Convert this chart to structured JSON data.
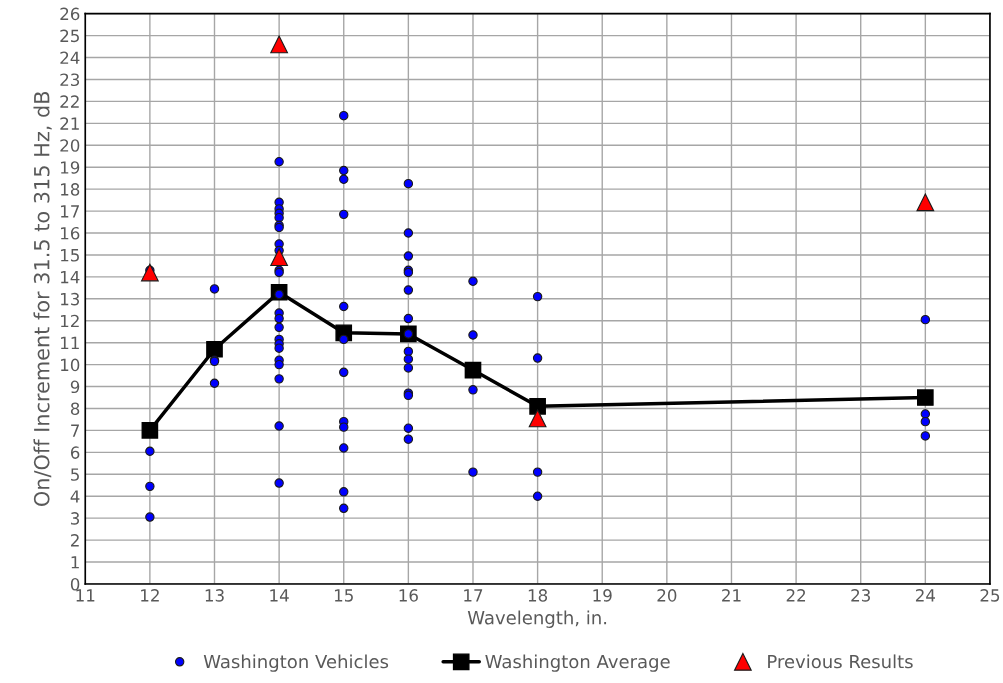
{
  "chart_data": {
    "type": "scatter",
    "xlabel": "Wavelength, in.",
    "ylabel": "On/Off Increment for 31.5 to 315 Hz, dB",
    "xlim": [
      11,
      25
    ],
    "xticks": [
      11,
      12,
      13,
      14,
      15,
      16,
      17,
      18,
      19,
      20,
      21,
      22,
      23,
      24,
      25
    ],
    "ylim": [
      0,
      26
    ],
    "yticks": [
      0,
      1,
      2,
      3,
      4,
      5,
      6,
      7,
      8,
      9,
      10,
      11,
      12,
      13,
      14,
      15,
      16,
      17,
      18,
      19,
      20,
      21,
      22,
      23,
      24,
      25,
      26
    ],
    "grid": true,
    "legend": "bottom",
    "series": [
      {
        "name": "Washington Vehicles",
        "marker": "circle",
        "color": "#0000ff",
        "x": [
          12,
          12,
          12,
          12,
          13,
          13,
          13,
          13,
          14,
          14,
          14,
          14,
          14,
          14,
          14,
          14,
          14,
          14,
          14,
          14,
          14,
          14,
          14,
          14,
          14,
          14,
          14,
          14,
          14,
          14,
          14,
          15,
          15,
          15,
          15,
          15,
          15,
          15,
          15,
          15,
          15,
          15,
          15,
          16,
          16,
          16,
          16,
          16,
          16,
          16,
          16,
          16,
          16,
          16,
          16,
          16,
          16,
          16,
          17,
          17,
          17,
          17,
          18,
          18,
          18,
          18,
          24,
          24,
          24,
          24
        ],
        "values": [
          14.3,
          6.05,
          4.45,
          3.05,
          13.45,
          10.2,
          10.15,
          9.15,
          19.25,
          17.4,
          17.1,
          16.9,
          16.7,
          16.35,
          16.25,
          15.5,
          15.2,
          14.3,
          14.2,
          13.2,
          12.35,
          12.1,
          11.7,
          11.15,
          10.95,
          10.75,
          10.2,
          10.0,
          9.35,
          7.2,
          4.6,
          21.35,
          18.85,
          18.45,
          16.85,
          12.65,
          11.15,
          9.65,
          7.4,
          7.15,
          6.2,
          4.2,
          3.45,
          18.25,
          16.0,
          14.95,
          14.3,
          14.2,
          13.4,
          12.1,
          11.4,
          10.6,
          10.25,
          9.85,
          8.7,
          8.6,
          7.1,
          6.6,
          13.8,
          11.35,
          8.85,
          5.1,
          13.1,
          10.3,
          5.1,
          4.0,
          12.05,
          7.75,
          7.4,
          6.75
        ]
      },
      {
        "name": "Washington Average",
        "type": "line",
        "marker": "square",
        "line_style": "solid",
        "color": "#000000",
        "x": [
          12,
          13,
          14,
          15,
          16,
          17,
          18,
          24
        ],
        "values": [
          7.0,
          10.7,
          13.3,
          11.45,
          11.4,
          9.75,
          8.1,
          8.5
        ]
      },
      {
        "name": "Previous Results",
        "marker": "triangle",
        "color": "#ff0000",
        "x": [
          12,
          14,
          14,
          18,
          24
        ],
        "values": [
          14.2,
          24.6,
          14.9,
          7.55,
          17.4
        ]
      }
    ]
  }
}
